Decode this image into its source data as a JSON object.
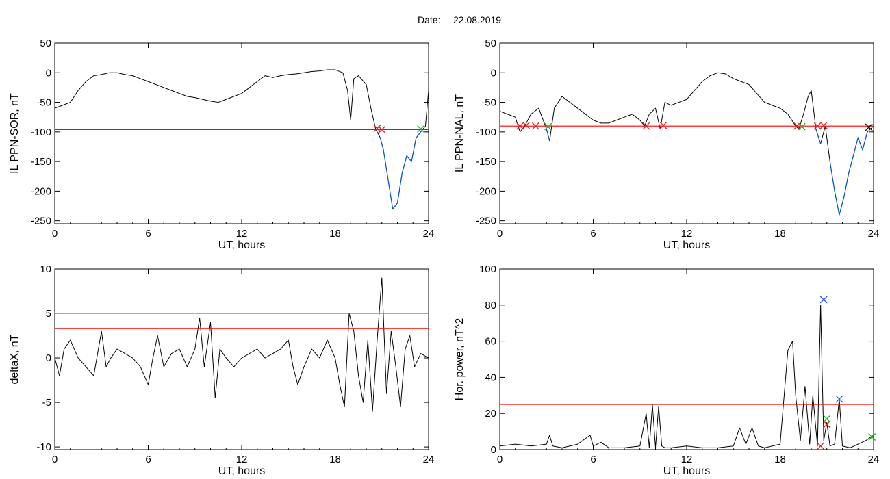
{
  "header": {
    "date_label": "Date:",
    "date_value": "22.08.2019"
  },
  "colors": {
    "data": "#000000",
    "threshold": "#ff0000",
    "below": "#0055dd",
    "upper_threshold": "#2a9d8f",
    "marker_red": "#e02020",
    "marker_green": "#20b020",
    "marker_blue": "#2255dd"
  },
  "chart_data": [
    {
      "id": "ppn_sor",
      "type": "line",
      "xlabel": "UT, hours",
      "ylabel": "IL PPN-SOR, nT",
      "xlim": [
        0,
        24
      ],
      "ylim": [
        -255,
        50
      ],
      "xticks": [
        0,
        6,
        12,
        18,
        24
      ],
      "yticks": [
        50,
        0,
        -50,
        -100,
        -150,
        -200,
        -250
      ],
      "threshold": -96,
      "series": [
        {
          "x": [
            0,
            0.5,
            1,
            1.5,
            2,
            2.5,
            3,
            3.5,
            4,
            4.5,
            5,
            5.5,
            6,
            6.5,
            7,
            7.5,
            8,
            8.5,
            9,
            9.5,
            10,
            10.5,
            11,
            11.5,
            12,
            12.5,
            13,
            13.5,
            14,
            14.5,
            15,
            15.5,
            16,
            16.5,
            17,
            17.5,
            18,
            18.5,
            18.8,
            19,
            19.2,
            19.5,
            20,
            20.3,
            20.6,
            20.9,
            21.1,
            21.4,
            21.7,
            22,
            22.3,
            22.6,
            22.9,
            23.2,
            23.5,
            23.8,
            24
          ],
          "y": [
            -60,
            -55,
            -50,
            -30,
            -15,
            -5,
            -3,
            0,
            0,
            -3,
            -5,
            -10,
            -15,
            -20,
            -25,
            -30,
            -35,
            -40,
            -42,
            -45,
            -48,
            -50,
            -45,
            -40,
            -35,
            -25,
            -15,
            -5,
            -8,
            -5,
            -3,
            -2,
            0,
            2,
            3,
            5,
            5,
            0,
            -30,
            -80,
            -10,
            -5,
            -20,
            -60,
            -95,
            -110,
            -130,
            -180,
            -230,
            -220,
            -170,
            -140,
            -150,
            -110,
            -100,
            -90,
            -30
          ]
        }
      ],
      "markers": [
        {
          "x": 20.7,
          "y": -94,
          "color": "red"
        },
        {
          "x": 21.0,
          "y": -96,
          "color": "red"
        },
        {
          "x": 23.5,
          "y": -95,
          "color": "green"
        }
      ]
    },
    {
      "id": "ppn_nal",
      "type": "line",
      "xlabel": "UT, hours",
      "ylabel": "IL PPN-NAL, nT",
      "xlim": [
        0,
        24
      ],
      "ylim": [
        -255,
        50
      ],
      "xticks": [
        0,
        6,
        12,
        18,
        24
      ],
      "yticks": [
        50,
        0,
        -50,
        -100,
        -150,
        -200,
        -250
      ],
      "threshold": -90,
      "series": [
        {
          "x": [
            0,
            0.5,
            1,
            1.3,
            1.6,
            2,
            2.5,
            3,
            3.2,
            3.5,
            4,
            4.5,
            5,
            5.5,
            6,
            6.5,
            7,
            7.5,
            8,
            8.5,
            9,
            9.3,
            9.6,
            10,
            10.3,
            10.6,
            11,
            11.5,
            12,
            12.5,
            13,
            13.5,
            14,
            14.5,
            15,
            15.5,
            16,
            16.5,
            17,
            17.5,
            18,
            18.5,
            19,
            19.2,
            19.5,
            19.8,
            20,
            20.3,
            20.6,
            20.9,
            21.2,
            21.5,
            21.8,
            22.1,
            22.4,
            22.7,
            23,
            23.3,
            23.6,
            24
          ],
          "y": [
            -65,
            -70,
            -75,
            -100,
            -90,
            -70,
            -60,
            -95,
            -115,
            -60,
            -40,
            -50,
            -60,
            -70,
            -80,
            -85,
            -85,
            -80,
            -75,
            -70,
            -80,
            -90,
            -70,
            -60,
            -95,
            -50,
            -55,
            -50,
            -45,
            -30,
            -15,
            -5,
            0,
            -2,
            -10,
            -15,
            -20,
            -35,
            -50,
            -55,
            -60,
            -70,
            -90,
            -95,
            -70,
            -40,
            -30,
            -95,
            -120,
            -90,
            -150,
            -200,
            -240,
            -210,
            -170,
            -140,
            -110,
            -130,
            -100,
            -90
          ]
        }
      ],
      "markers": [
        {
          "x": 1.3,
          "y": -90,
          "color": "red"
        },
        {
          "x": 1.7,
          "y": -89,
          "color": "red"
        },
        {
          "x": 2.3,
          "y": -90,
          "color": "red"
        },
        {
          "x": 3.1,
          "y": -91,
          "color": "green"
        },
        {
          "x": 9.4,
          "y": -90,
          "color": "red"
        },
        {
          "x": 10.5,
          "y": -89,
          "color": "red"
        },
        {
          "x": 19.1,
          "y": -90,
          "color": "red"
        },
        {
          "x": 19.4,
          "y": -91,
          "color": "green"
        },
        {
          "x": 20.4,
          "y": -90,
          "color": "red"
        },
        {
          "x": 20.8,
          "y": -89,
          "color": "red"
        },
        {
          "x": 23.7,
          "y": -92,
          "color": "black"
        }
      ]
    },
    {
      "id": "deltax",
      "type": "line",
      "xlabel": "UT, hours",
      "ylabel": "deltaX, nT",
      "xlim": [
        0,
        24
      ],
      "ylim": [
        -10.3,
        10
      ],
      "xticks": [
        0,
        6,
        12,
        18,
        24
      ],
      "yticks": [
        10,
        5,
        0,
        -5,
        -10
      ],
      "threshold": 3.3,
      "upper_threshold": 5,
      "series": [
        {
          "x": [
            0,
            0.3,
            0.6,
            1,
            1.5,
            2,
            2.5,
            3,
            3.3,
            3.6,
            4,
            4.5,
            5,
            5.5,
            6,
            6.3,
            6.6,
            7,
            7.5,
            8,
            8.5,
            9,
            9.3,
            9.6,
            10,
            10.3,
            10.6,
            11,
            11.5,
            12,
            12.5,
            13,
            13.5,
            14,
            14.5,
            15,
            15.3,
            15.6,
            16,
            16.5,
            17,
            17.5,
            18,
            18.3,
            18.6,
            18.9,
            19.2,
            19.5,
            19.8,
            20.1,
            20.4,
            20.7,
            21,
            21.3,
            21.6,
            21.9,
            22.2,
            22.5,
            22.8,
            23.1,
            23.5,
            24
          ],
          "y": [
            0,
            -2,
            1,
            2,
            0,
            -1,
            -2,
            3,
            -1,
            0,
            1,
            0.5,
            0,
            -1,
            -3,
            0,
            2.5,
            -1,
            0.5,
            1,
            -1,
            1,
            4.5,
            -1,
            4,
            -4.5,
            1,
            0,
            -1,
            0,
            0.5,
            1,
            0,
            0.5,
            1,
            2,
            -1,
            -3,
            -1,
            1,
            0,
            2,
            0,
            -3,
            -5.5,
            5,
            3,
            -2,
            -5,
            2,
            -6,
            2,
            9,
            -4,
            3,
            -1,
            -5.5,
            1,
            2.5,
            -1,
            0.5,
            0
          ]
        }
      ],
      "markers": []
    },
    {
      "id": "hor_power",
      "type": "line",
      "xlabel": "UT, hours",
      "ylabel": "Hor. power, nT^2",
      "xlim": [
        0,
        24
      ],
      "ylim": [
        0,
        100
      ],
      "xticks": [
        0,
        6,
        12,
        18,
        24
      ],
      "yticks": [
        100,
        80,
        60,
        40,
        20,
        0
      ],
      "threshold": 25,
      "series": [
        {
          "x": [
            0,
            1,
            2,
            3,
            3.2,
            3.4,
            4,
            5,
            5.8,
            6,
            6.5,
            7,
            8,
            9,
            9.4,
            9.6,
            9.8,
            10,
            10.2,
            10.4,
            10.6,
            11,
            12,
            13,
            14,
            15,
            15.4,
            15.8,
            16.2,
            16.6,
            17,
            17.5,
            18,
            18.5,
            18.8,
            19,
            19.3,
            19.6,
            19.9,
            20.1,
            20.4,
            20.6,
            20.8,
            21,
            21.2,
            21.5,
            21.8,
            22,
            22.5,
            23,
            23.5,
            24
          ],
          "y": [
            2,
            3,
            2,
            3,
            8,
            2,
            1,
            3,
            8,
            2,
            4,
            1,
            1,
            2,
            20,
            1,
            25,
            1,
            24,
            2,
            1,
            1,
            2,
            1,
            1,
            2,
            12,
            3,
            12,
            2,
            1,
            2,
            3,
            55,
            60,
            30,
            5,
            35,
            3,
            30,
            2,
            80,
            5,
            15,
            2,
            3,
            28,
            2,
            1,
            3,
            5,
            8
          ]
        }
      ],
      "markers": [
        {
          "x": 20.8,
          "y": 83,
          "color": "blue"
        },
        {
          "x": 21.8,
          "y": 28,
          "color": "blue"
        },
        {
          "x": 21.0,
          "y": 17,
          "color": "green"
        },
        {
          "x": 21.0,
          "y": 14,
          "color": "red"
        },
        {
          "x": 20.6,
          "y": 2,
          "color": "red"
        },
        {
          "x": 23.9,
          "y": 7,
          "color": "green"
        }
      ]
    }
  ]
}
